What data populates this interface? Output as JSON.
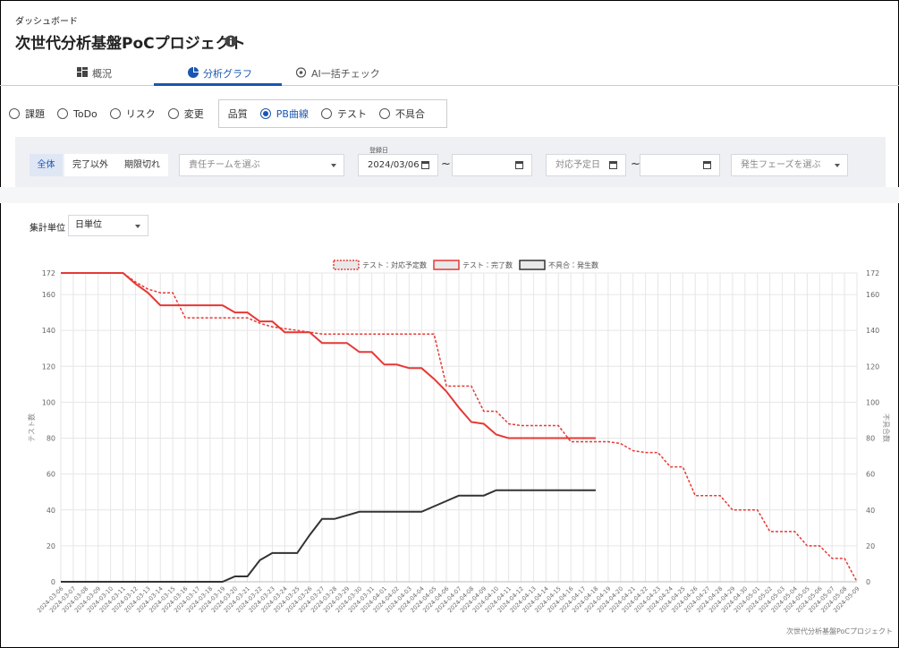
{
  "header": {
    "breadcrumb": "ダッシュボード",
    "title": "次世代分析基盤PoCプロジェクト"
  },
  "tabs": [
    "概況",
    "分析グラフ",
    "AI一括チェック"
  ],
  "active_tab": 1,
  "radios": {
    "options": [
      "課題",
      "ToDo",
      "リスク",
      "変更"
    ],
    "group_label": "品質",
    "group_options": [
      "PB曲線",
      "テスト",
      "不具合"
    ],
    "selected": "PB曲線"
  },
  "filters": {
    "buttons": [
      "全体",
      "完了以外",
      "期限切れ"
    ],
    "active_button": 0,
    "team_placeholder": "責任チームを選ぶ",
    "registered_label": "登録日",
    "registered_from": "2024/03/06",
    "range_sep": "~",
    "due_label": "対応予定日",
    "phase_placeholder": "発生フェーズを選ぶ"
  },
  "aggregation": {
    "label": "集計単位",
    "value": "日単位"
  },
  "footer": "次世代分析基盤PoCプロジェクト",
  "chart_data": {
    "type": "line",
    "y_label": "テスト数",
    "y2_label": "不具合数",
    "categories": [
      "2024-03-06",
      "2024-03-07",
      "2024-03-08",
      "2024-03-09",
      "2024-03-10",
      "2024-03-11",
      "2024-03-12",
      "2024-03-13",
      "2024-03-14",
      "2024-03-15",
      "2024-03-16",
      "2024-03-17",
      "2024-03-18",
      "2024-03-19",
      "2024-03-20",
      "2024-03-21",
      "2024-03-22",
      "2024-03-23",
      "2024-03-24",
      "2024-03-25",
      "2024-03-26",
      "2024-03-27",
      "2024-03-28",
      "2024-03-29",
      "2024-03-30",
      "2024-03-31",
      "2024-04-01",
      "2024-04-02",
      "2024-04-03",
      "2024-04-04",
      "2024-04-05",
      "2024-04-06",
      "2024-04-07",
      "2024-04-08",
      "2024-04-09",
      "2024-04-10",
      "2024-04-11",
      "2024-04-12",
      "2024-04-13",
      "2024-04-14",
      "2024-04-15",
      "2024-04-16",
      "2024-04-17",
      "2024-04-18",
      "2024-04-19",
      "2024-04-20",
      "2024-04-21",
      "2024-04-22",
      "2024-04-23",
      "2024-04-24",
      "2024-04-25",
      "2024-04-26",
      "2024-04-27",
      "2024-04-28",
      "2024-04-29",
      "2024-04-30",
      "2024-05-01",
      "2024-05-02",
      "2024-05-03",
      "2024-05-04",
      "2024-05-05",
      "2024-05-06",
      "2024-05-07",
      "2024-05-08",
      "2024-05-09"
    ],
    "series": [
      {
        "name": "テスト：対応予定数",
        "color": "#e53935",
        "line_style": "dashed",
        "values": [
          172,
          172,
          172,
          172,
          172,
          172,
          167,
          163,
          161,
          161,
          147,
          147,
          147,
          147,
          147,
          147,
          144,
          142,
          141,
          140,
          139,
          138,
          138,
          138,
          138,
          138,
          138,
          138,
          138,
          138,
          138,
          109,
          109,
          109,
          95,
          95,
          88,
          87,
          87,
          87,
          87,
          78,
          78,
          78,
          78,
          77,
          73,
          72,
          72,
          64,
          64,
          48,
          48,
          48,
          40,
          40,
          40,
          28,
          28,
          28,
          20,
          20,
          13,
          13,
          0
        ]
      },
      {
        "name": "テスト：完了数",
        "color": "#e53935",
        "line_style": "solid",
        "values": [
          172,
          172,
          172,
          172,
          172,
          172,
          166,
          161,
          154,
          154,
          154,
          154,
          154,
          154,
          150,
          150,
          145,
          145,
          139,
          139,
          139,
          133,
          133,
          133,
          128,
          128,
          121,
          121,
          119,
          119,
          113,
          106,
          97,
          89,
          88,
          82,
          80,
          80,
          80,
          80,
          80,
          80,
          80,
          80,
          null,
          null,
          null,
          null,
          null,
          null,
          null,
          null,
          null,
          null,
          null,
          null,
          null,
          null,
          null,
          null,
          null,
          null,
          null,
          null,
          null
        ]
      },
      {
        "name": "不具合：発生数",
        "color": "#333333",
        "line_style": "solid",
        "axis": "y2",
        "values": [
          0,
          0,
          0,
          0,
          0,
          0,
          0,
          0,
          0,
          0,
          0,
          0,
          0,
          0,
          3,
          3,
          12,
          16,
          16,
          16,
          26,
          35,
          35,
          37,
          39,
          39,
          39,
          39,
          39,
          39,
          42,
          45,
          48,
          48,
          48,
          51,
          51,
          51,
          51,
          51,
          51,
          51,
          51,
          51,
          null,
          null,
          null,
          null,
          null,
          null,
          null,
          null,
          null,
          null,
          null,
          null,
          null,
          null,
          null,
          null,
          null,
          null,
          null,
          null,
          null
        ]
      }
    ],
    "ylim": [
      0,
      172
    ],
    "yticks": [
      0,
      20,
      40,
      60,
      80,
      100,
      120,
      140,
      160,
      172
    ],
    "y2lim": [
      0,
      172
    ],
    "y2ticks": [
      0,
      20,
      40,
      60,
      80,
      100,
      120,
      140,
      160,
      172
    ],
    "grid": true,
    "legend": "top"
  }
}
